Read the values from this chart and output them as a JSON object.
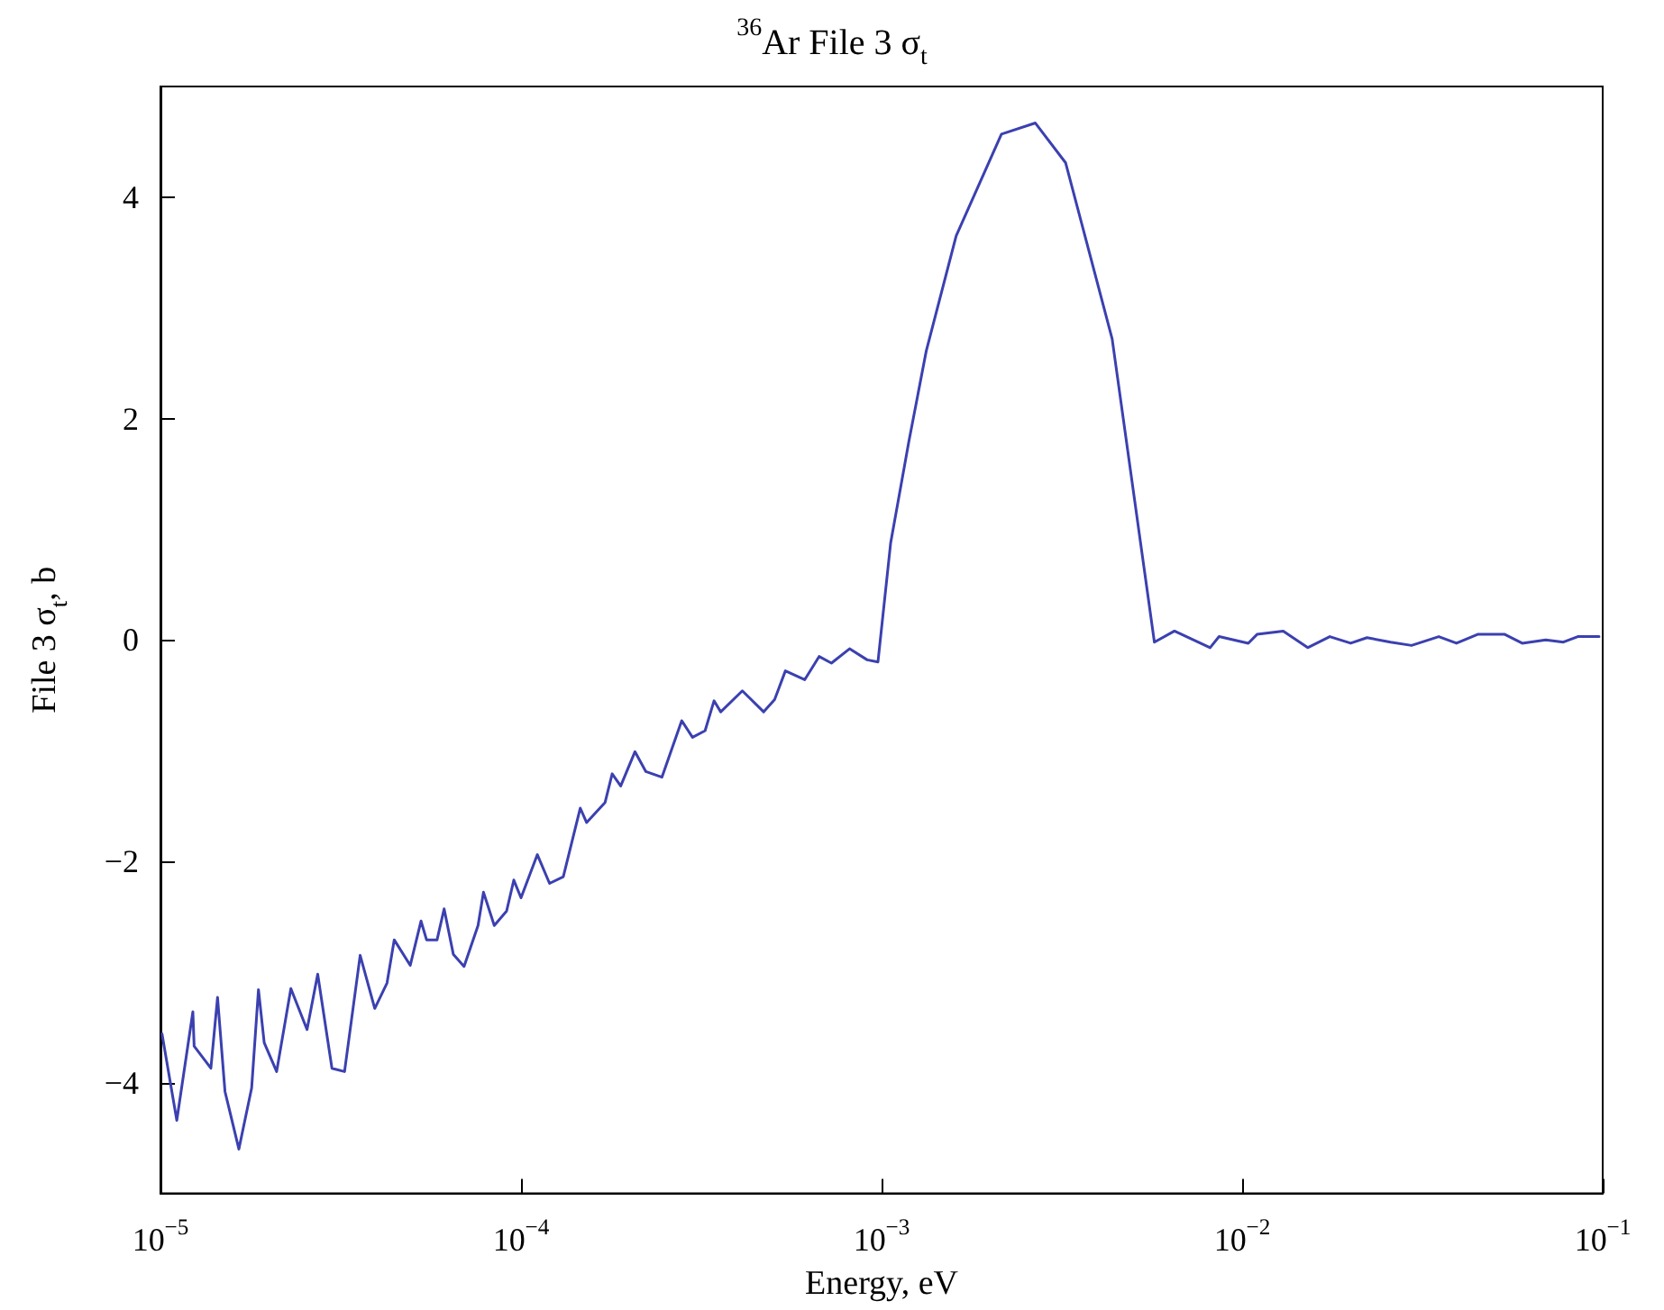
{
  "chart_data": {
    "type": "line",
    "title": "$^{36}$Ar File 3 σ$_{t}$",
    "xlabel": "Energy, eV",
    "ylabel": "File 3 σ$_{t}$, b",
    "log": "x",
    "grid": false,
    "marker": "none",
    "line_style": "solid",
    "xlim": [
      1e-05,
      0.1
    ],
    "xticks": [
      {
        "value": 1e-05,
        "label": "10$^{−5}$"
      },
      {
        "value": 0.0001,
        "label": "10$^{−4}$"
      },
      {
        "value": 0.001,
        "label": "10$^{−3}$"
      },
      {
        "value": 0.01,
        "label": "10$^{−2}$"
      },
      {
        "value": 0.1,
        "label": "10$^{−1}$"
      }
    ],
    "ylim": [
      -5,
      5
    ],
    "yticks": [
      {
        "value": -4,
        "label": "−4"
      },
      {
        "value": -2,
        "label": "−2"
      },
      0,
      2,
      4
    ],
    "x": [
      1.01e-05,
      1.11e-05,
      1.23e-05,
      1.24e-05,
      1.38e-05,
      1.44e-05,
      1.51e-05,
      1.65e-05,
      1.79e-05,
      1.87e-05,
      1.94e-05,
      2.1e-05,
      2.3e-05,
      2.55e-05,
      2.73e-05,
      2.99e-05,
      3.24e-05,
      3.58e-05,
      3.93e-05,
      4.25e-05,
      4.45e-05,
      4.93e-05,
      5.28e-05,
      5.47e-05,
      5.85e-05,
      6.12e-05,
      6.49e-05,
      6.95e-05,
      7.6e-05,
      7.87e-05,
      8.43e-05,
      9.12e-05,
      9.55e-05,
      0.0001,
      0.000111,
      0.00012,
      0.000131,
      0.000146,
      0.000152,
      0.000171,
      0.000179,
      0.000189,
      0.000207,
      0.000222,
      0.000246,
      0.000279,
      0.000299,
      0.000324,
      0.000343,
      0.000358,
      0.000411,
      0.000471,
      0.000505,
      0.000541,
      0.000612,
      0.000671,
      0.000726,
      0.000815,
      0.000912,
      0.000977,
      0.00106,
      0.00119,
      0.00133,
      0.00161,
      0.00215,
      0.00267,
      0.00324,
      0.00436,
      0.00571,
      0.00649,
      0.00815,
      0.00863,
      0.0104,
      0.011,
      0.013,
      0.0152,
      0.0175,
      0.02,
      0.0222,
      0.0258,
      0.0295,
      0.0351,
      0.0393,
      0.045,
      0.0535,
      0.0598,
      0.0695,
      0.0778,
      0.0853,
      0.0977
    ],
    "series": [
      {
        "color": "#3b40b0",
        "values": [
          -3.56,
          -4.34,
          -3.36,
          -3.67,
          -3.87,
          -3.23,
          -4.08,
          -4.6,
          -4.05,
          -3.16,
          -3.64,
          -3.9,
          -3.15,
          -3.52,
          -3.02,
          -3.87,
          -3.9,
          -2.85,
          -3.33,
          -3.1,
          -2.71,
          -2.94,
          -2.54,
          -2.71,
          -2.71,
          -2.43,
          -2.84,
          -2.95,
          -2.58,
          -2.28,
          -2.58,
          -2.45,
          -2.17,
          -2.33,
          -1.94,
          -2.2,
          -2.14,
          -1.52,
          -1.65,
          -1.47,
          -1.21,
          -1.32,
          -1.01,
          -1.19,
          -1.24,
          -0.73,
          -0.88,
          -0.82,
          -0.55,
          -0.65,
          -0.46,
          -0.65,
          -0.54,
          -0.28,
          -0.36,
          -0.15,
          -0.21,
          -0.08,
          -0.18,
          -0.2,
          0.88,
          1.79,
          2.61,
          3.65,
          4.57,
          4.67,
          4.31,
          2.72,
          -0.02,
          0.08,
          -0.07,
          0.03,
          -0.03,
          0.05,
          0.08,
          -0.07,
          0.03,
          -0.03,
          0.02,
          -0.02,
          -0.05,
          0.03,
          -0.03,
          0.05,
          0.05,
          -0.03,
          0,
          -0.02,
          0.03,
          0.03
        ]
      }
    ]
  }
}
